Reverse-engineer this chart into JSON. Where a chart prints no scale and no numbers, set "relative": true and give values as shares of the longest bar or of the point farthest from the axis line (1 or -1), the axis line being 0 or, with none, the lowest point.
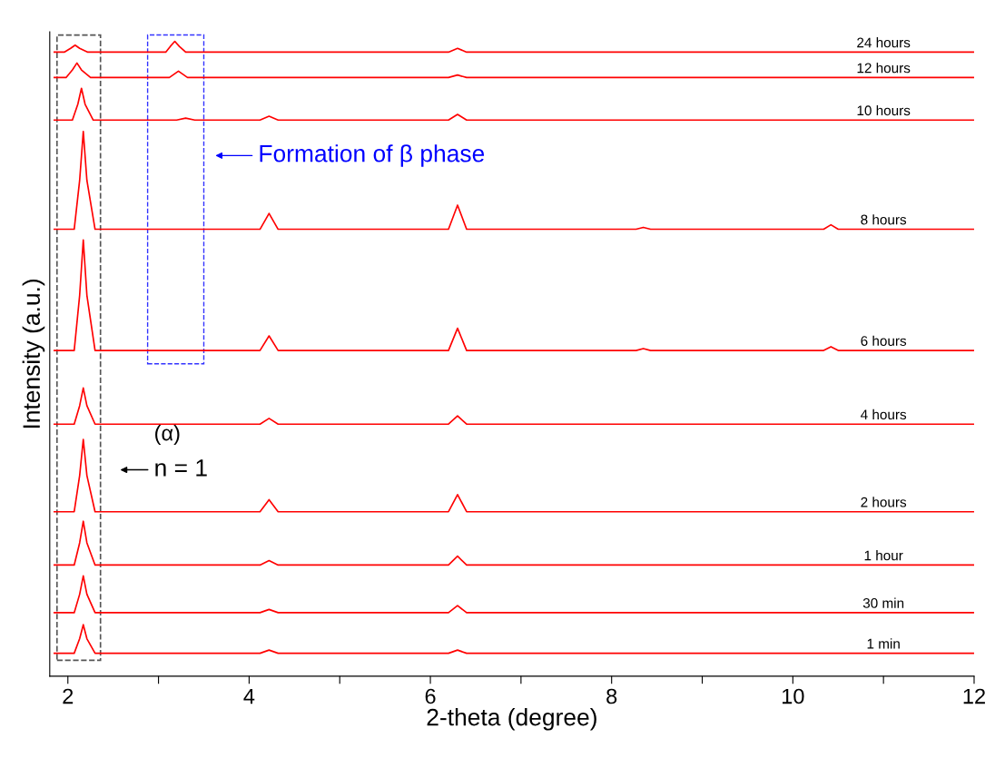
{
  "chart_data": {
    "type": "line",
    "relative": true,
    "xlabel": "2-theta (degree)",
    "ylabel": "Intensity (a.u.)",
    "xlim": [
      1.8,
      12
    ],
    "xticks": [
      2,
      {
        "value": 3,
        "label": null
      },
      4,
      {
        "value": 5,
        "label": null
      },
      6,
      {
        "value": 7,
        "label": null
      },
      8,
      {
        "value": 9,
        "label": null
      },
      10,
      {
        "value": 11,
        "label": null
      },
      12
    ],
    "tick_labels": "x",
    "grid": false,
    "legend": false,
    "marker": "none",
    "line_style": "solid",
    "x": [
      1.85,
      2.07,
      2.13,
      2.17,
      2.21,
      2.3,
      4.12,
      4.22,
      4.32,
      6.2,
      6.3,
      6.4,
      12
    ],
    "annotations": [
      "Formation of β phase",
      "(α)",
      "n = 1"
    ],
    "series": [
      {
        "name": "1 min",
        "color": "#ff0000",
        "values": [
          0.036,
          0.036,
          0.059,
          0.081,
          0.059,
          0.036,
          0.036,
          0.041,
          0.036,
          0.036,
          0.041,
          0.036,
          0.036
        ]
      },
      {
        "name": "30 min",
        "color": "#ff0000",
        "values": [
          0.1,
          0.1,
          0.129,
          0.158,
          0.129,
          0.1,
          0.1,
          0.105,
          0.1,
          0.1,
          0.111,
          0.1,
          0.1
        ]
      },
      {
        "name": "1 hour",
        "color": "#ff0000",
        "values": [
          0.175,
          0.175,
          0.21,
          0.244,
          0.21,
          0.175,
          0.175,
          0.182,
          0.175,
          0.175,
          0.189,
          0.175,
          0.175
        ]
      },
      {
        "name": "2 hours",
        "color": "#ff0000",
        "values": [
          0.259,
          0.259,
          0.316,
          0.373,
          0.316,
          0.259,
          0.259,
          0.278,
          0.259,
          0.259,
          0.286,
          0.259,
          0.259
        ]
      },
      {
        "name": "4 hours",
        "color": "#ff0000",
        "values": [
          0.397,
          0.397,
          0.426,
          0.454,
          0.426,
          0.397,
          0.397,
          0.406,
          0.397,
          0.397,
          0.41,
          0.397,
          0.397
        ]
      },
      {
        "name": "6 hours",
        "color": "#ff0000",
        "x": [
          1.85,
          2.07,
          2.13,
          2.17,
          2.21,
          2.3,
          4.12,
          4.22,
          4.32,
          6.2,
          6.3,
          6.4,
          8.27,
          8.35,
          8.43,
          10.34,
          10.42,
          10.5,
          12
        ],
        "values": [
          0.513,
          0.513,
          0.6,
          0.687,
          0.6,
          0.513,
          0.513,
          0.536,
          0.513,
          0.513,
          0.548,
          0.513,
          0.513,
          0.516,
          0.513,
          0.513,
          0.519,
          0.513,
          0.513
        ]
      },
      {
        "name": "8 hours",
        "color": "#ff0000",
        "x": [
          1.85,
          2.07,
          2.13,
          2.17,
          2.21,
          2.3,
          4.12,
          4.22,
          4.32,
          6.2,
          6.3,
          6.4,
          8.27,
          8.35,
          8.43,
          10.34,
          10.42,
          10.5,
          12
        ],
        "values": [
          0.704,
          0.704,
          0.781,
          0.858,
          0.781,
          0.704,
          0.704,
          0.729,
          0.704,
          0.704,
          0.742,
          0.704,
          0.704,
          0.707,
          0.704,
          0.704,
          0.711,
          0.704,
          0.704
        ]
      },
      {
        "name": "10 hours",
        "color": "#ff0000",
        "x": [
          1.85,
          2.05,
          2.11,
          2.15,
          2.19,
          2.28,
          3.2,
          3.3,
          3.4,
          4.12,
          4.22,
          4.32,
          6.2,
          6.3,
          6.4,
          12
        ],
        "values": [
          0.876,
          0.876,
          0.901,
          0.926,
          0.901,
          0.876,
          0.876,
          0.879,
          0.876,
          0.876,
          0.882,
          0.876,
          0.876,
          0.885,
          0.876,
          0.876
        ]
      },
      {
        "name": "12 hours",
        "color": "#ff0000",
        "x": [
          1.85,
          1.98,
          2.05,
          2.1,
          2.15,
          2.25,
          3.12,
          3.22,
          3.32,
          6.2,
          6.3,
          6.4,
          12
        ],
        "values": [
          0.943,
          0.943,
          0.955,
          0.966,
          0.955,
          0.943,
          0.943,
          0.953,
          0.943,
          0.943,
          0.947,
          0.943,
          0.943
        ]
      },
      {
        "name": "24 hours",
        "color": "#ff0000",
        "x": [
          1.85,
          1.96,
          2.03,
          2.08,
          2.13,
          2.22,
          3.08,
          3.13,
          3.18,
          3.23,
          3.3,
          6.2,
          6.3,
          6.4,
          12
        ],
        "values": [
          0.983,
          0.983,
          0.989,
          0.994,
          0.989,
          0.983,
          0.983,
          0.992,
          1.0,
          0.992,
          0.983,
          0.983,
          0.989,
          0.983,
          0.983
        ]
      }
    ]
  }
}
